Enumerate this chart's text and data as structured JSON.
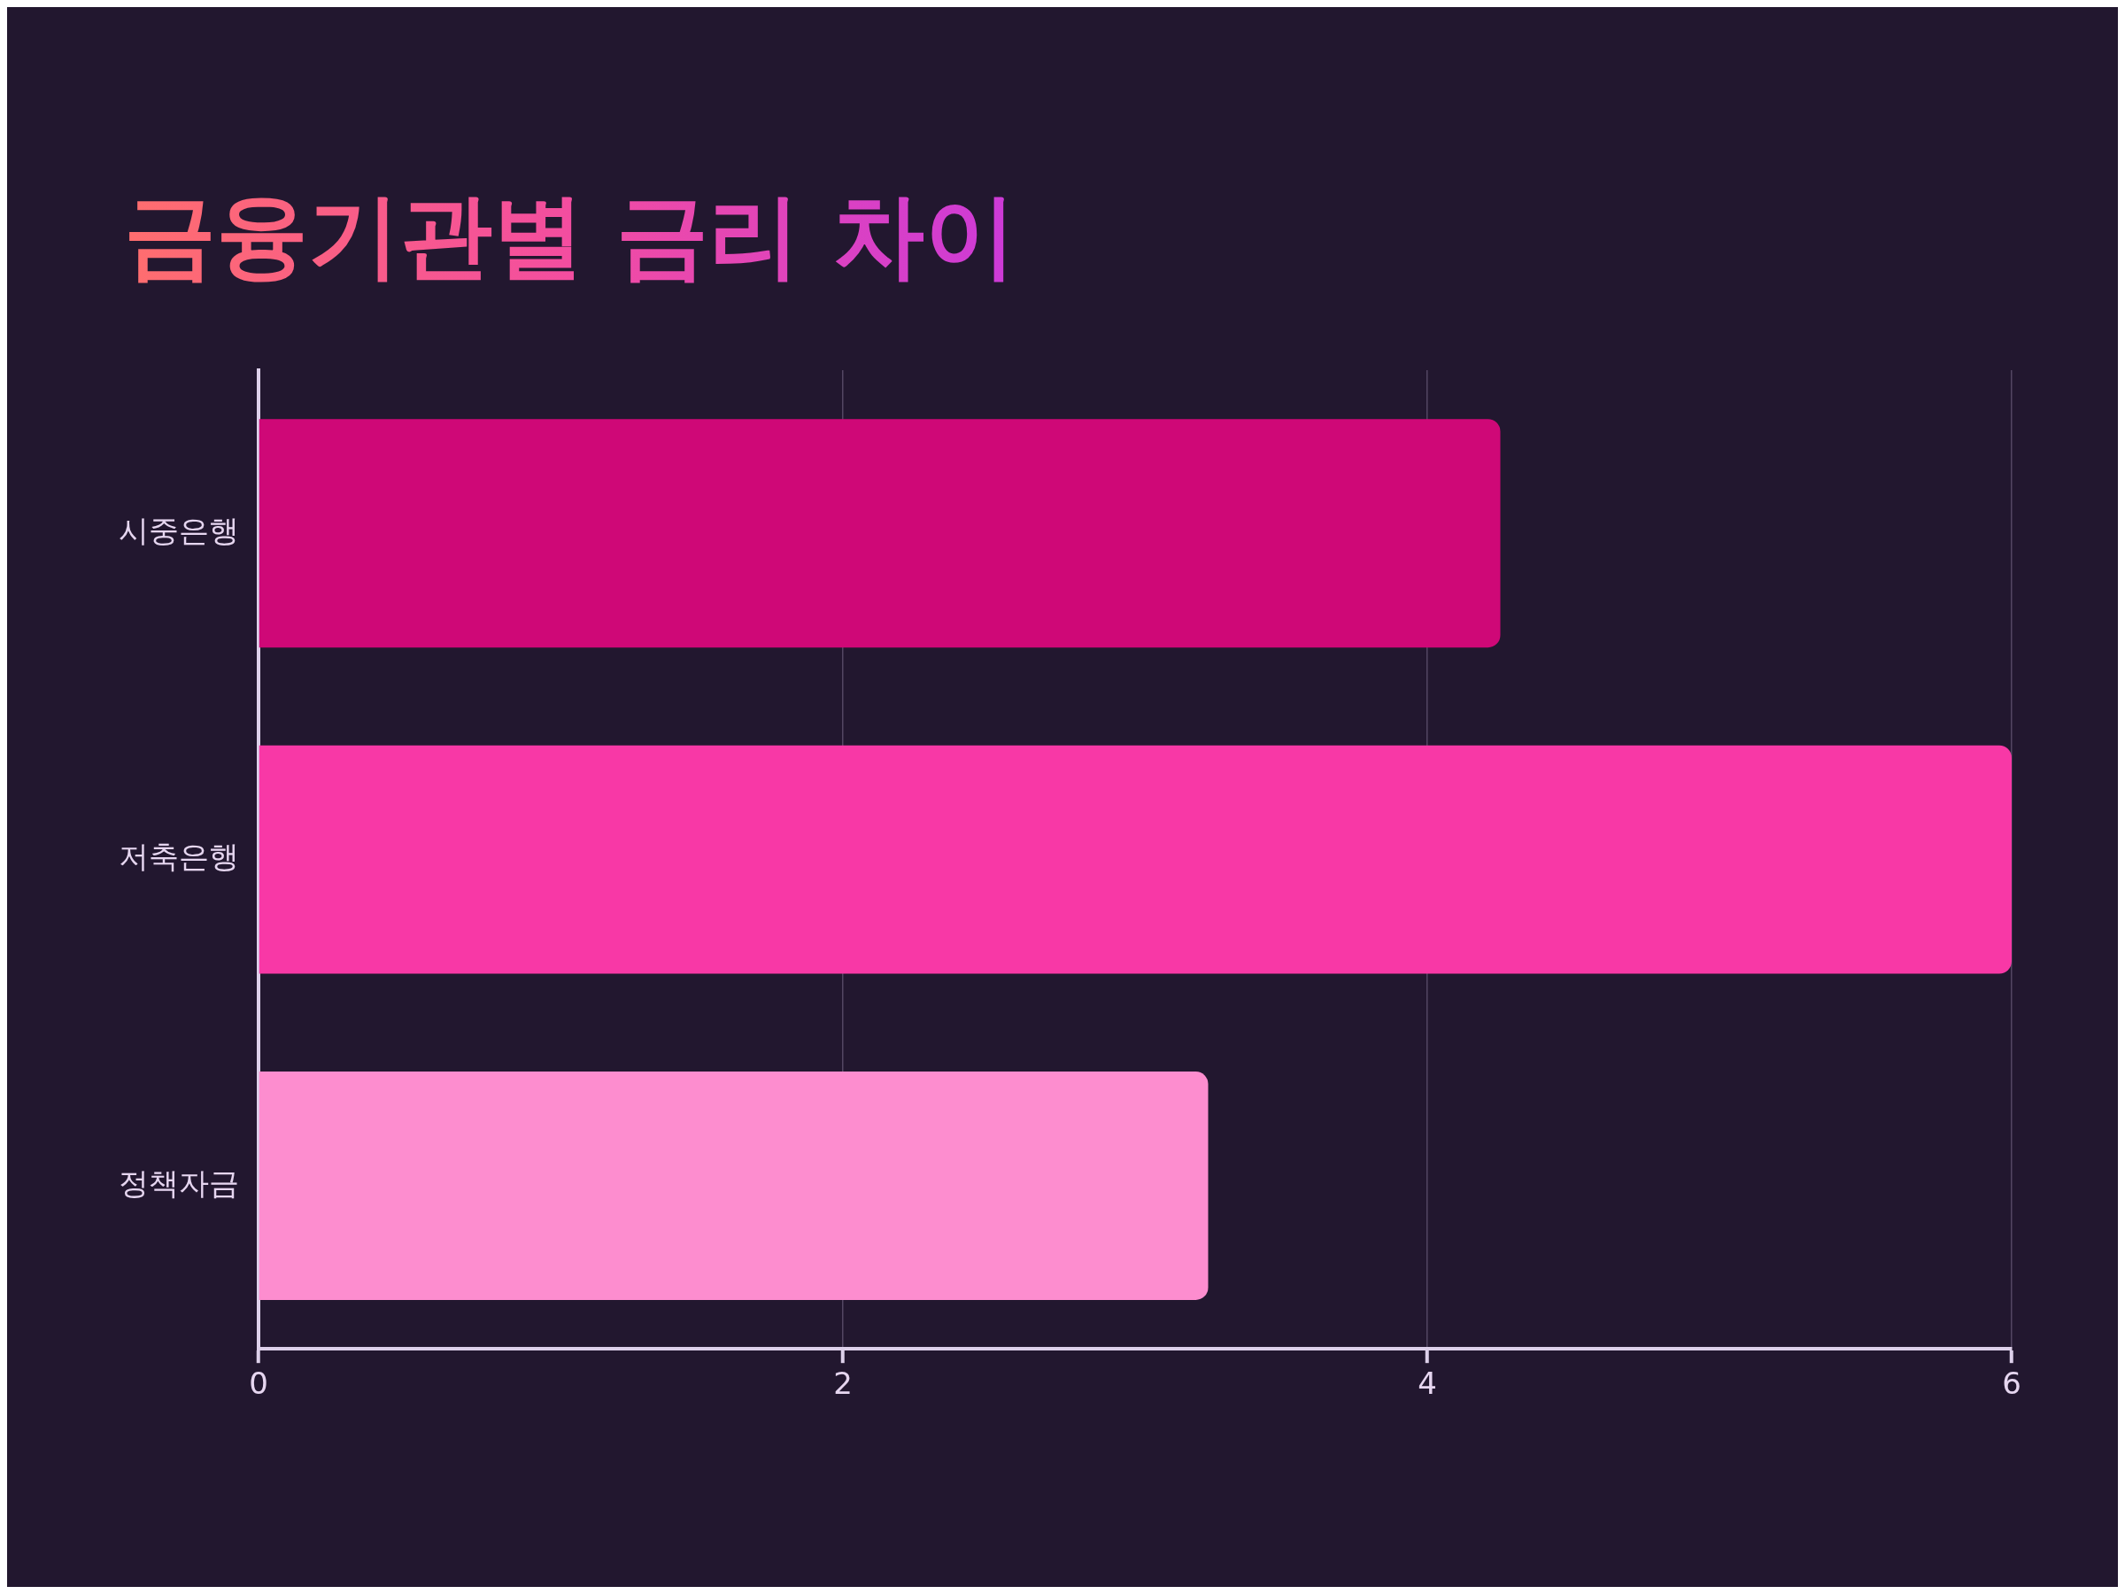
{
  "chart_data": {
    "type": "bar",
    "orientation": "horizontal",
    "title": "금융기관별 금리 차이",
    "categories": [
      "시중은행",
      "저축은행",
      "정책자금"
    ],
    "values": [
      4.25,
      6.0,
      3.25
    ],
    "colors": [
      "#cf0877",
      "#f838a6",
      "#fd8dcf"
    ],
    "xlim": [
      0,
      6
    ],
    "xticks": [
      0,
      2,
      4,
      6
    ],
    "grid": "x",
    "legend": false
  }
}
